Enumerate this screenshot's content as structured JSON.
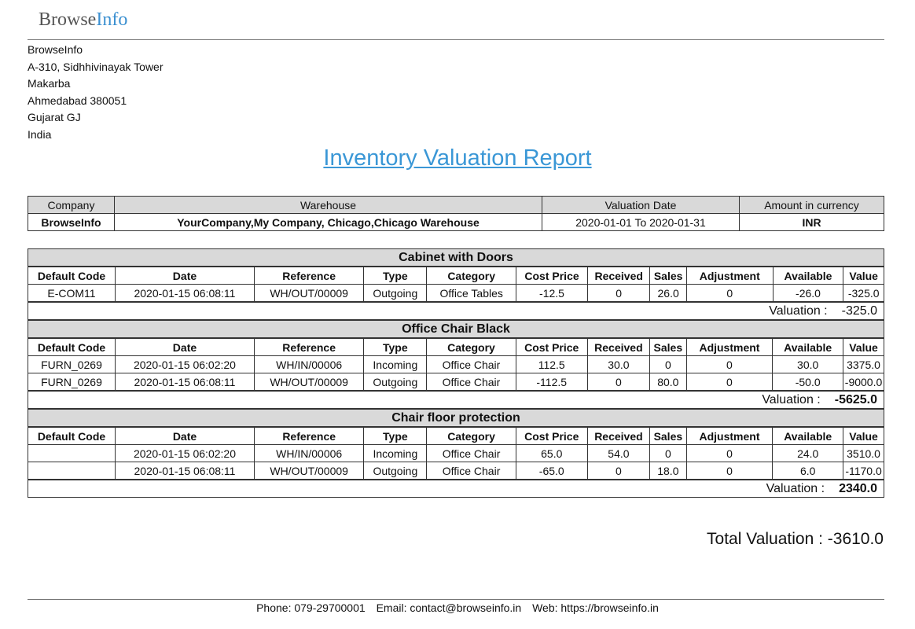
{
  "logo": {
    "part1": "Browse",
    "part2": "Info"
  },
  "address": [
    "BrowseInfo",
    "A-310, Sidhhivinayak Tower",
    "Makarba",
    "Ahmedabad 380051",
    "Gujarat GJ",
    "India"
  ],
  "report_title": "Inventory Valuation Report",
  "info": {
    "headers": [
      "Company",
      "Warehouse",
      "Valuation Date",
      "Amount in currency"
    ],
    "values": [
      "BrowseInfo",
      "YourCompany,My Company, Chicago,Chicago Warehouse",
      "2020-01-01 To 2020-01-31",
      "INR"
    ]
  },
  "columns": [
    "Default Code",
    "Date",
    "Reference",
    "Type",
    "Category",
    "Cost Price",
    "Received",
    "Sales",
    "Adjustment",
    "Available",
    "Value"
  ],
  "valuation_label": "Valuation :",
  "products": [
    {
      "name": "Cabinet with Doors",
      "rows": [
        [
          "E-COM11",
          "2020-01-15 06:08:11",
          "WH/OUT/00009",
          "Outgoing",
          "Office Tables",
          "-12.5",
          "0",
          "26.0",
          "0",
          "-26.0",
          "-325.0"
        ]
      ],
      "valuation": "-325.0"
    },
    {
      "name": "Office Chair Black",
      "rows": [
        [
          "FURN_0269",
          "2020-01-15 06:02:20",
          "WH/IN/00006",
          "Incoming",
          "Office Chair",
          "112.5",
          "30.0",
          "0",
          "0",
          "30.0",
          "3375.0"
        ],
        [
          "FURN_0269",
          "2020-01-15 06:08:11",
          "WH/OUT/00009",
          "Outgoing",
          "Office Chair",
          "-112.5",
          "0",
          "80.0",
          "0",
          "-50.0",
          "-9000.0"
        ]
      ],
      "valuation": "-5625.0"
    },
    {
      "name": "Chair floor protection",
      "rows": [
        [
          "",
          "2020-01-15 06:02:20",
          "WH/IN/00006",
          "Incoming",
          "Office Chair",
          "65.0",
          "54.0",
          "0",
          "0",
          "24.0",
          "3510.0"
        ],
        [
          "",
          "2020-01-15 06:08:11",
          "WH/OUT/00009",
          "Outgoing",
          "Office Chair",
          "-65.0",
          "0",
          "18.0",
          "0",
          "6.0",
          "-1170.0"
        ]
      ],
      "valuation": "2340.0"
    }
  ],
  "total": {
    "label": "Total Valuation :",
    "value": "-3610.0"
  },
  "footer": {
    "phone": "Phone: 079-29700001",
    "email": "Email: contact@browseinfo.in",
    "web": "Web: https://browseinfo.in"
  }
}
